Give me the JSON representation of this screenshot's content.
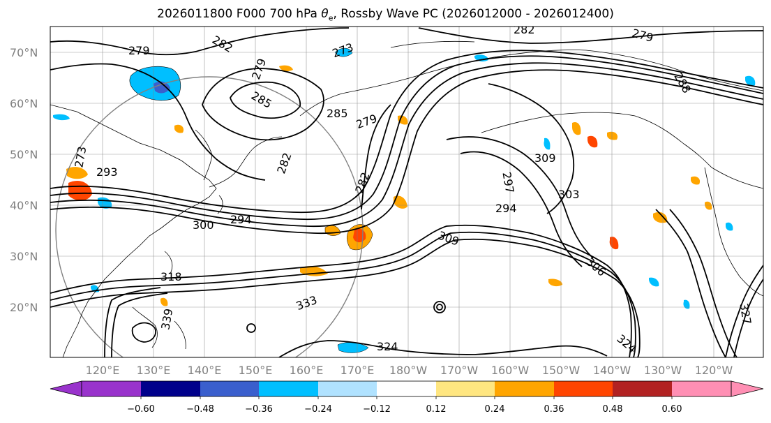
{
  "map": {
    "title_prefix": "2026011800 F000 700 hPa ",
    "title_var": "θ",
    "title_sub": "e",
    "title_suffix": ", Rossby Wave PC (2026012000 - 2026012400)",
    "lat_labels": [
      "70°N",
      "60°N",
      "50°N",
      "40°N",
      "30°N",
      "20°N"
    ],
    "lon_labels": [
      "120°E",
      "130°E",
      "140°E",
      "150°E",
      "160°E",
      "170°E",
      "180°W",
      "170°W",
      "160°W",
      "150°W",
      "140°W",
      "130°W",
      "120°W"
    ],
    "contour_labels": [
      {
        "text": "279",
        "name": "contour-label-279-a"
      },
      {
        "text": "282",
        "name": "contour-label-282-a"
      },
      {
        "text": "273",
        "name": "contour-label-273"
      },
      {
        "text": "279",
        "name": "contour-label-279-b"
      },
      {
        "text": "285",
        "name": "contour-label-285-a"
      },
      {
        "text": "285",
        "name": "contour-label-285-b"
      },
      {
        "text": "279",
        "name": "contour-label-279-c"
      },
      {
        "text": "279",
        "name": "contour-label-279-d"
      },
      {
        "text": "282",
        "name": "contour-label-282-b"
      },
      {
        "text": "288",
        "name": "contour-label-288"
      },
      {
        "text": "273",
        "name": "contour-label-273-b"
      },
      {
        "text": "293",
        "name": "contour-label-293"
      },
      {
        "text": "282",
        "name": "contour-label-282-c"
      },
      {
        "text": "282",
        "name": "contour-label-282-d"
      },
      {
        "text": "297",
        "name": "contour-label-297"
      },
      {
        "text": "309",
        "name": "contour-label-309"
      },
      {
        "text": "294",
        "name": "contour-label-294-a"
      },
      {
        "text": "303",
        "name": "contour-label-303"
      },
      {
        "text": "300",
        "name": "contour-label-300"
      },
      {
        "text": "294",
        "name": "contour-label-294-b"
      },
      {
        "text": "309",
        "name": "contour-label-309-b"
      },
      {
        "text": "318",
        "name": "contour-label-318"
      },
      {
        "text": "306",
        "name": "contour-label-306"
      },
      {
        "text": "333",
        "name": "contour-label-333"
      },
      {
        "text": "339",
        "name": "contour-label-339"
      },
      {
        "text": "327",
        "name": "contour-label-327"
      },
      {
        "text": "324",
        "name": "contour-label-324"
      },
      {
        "text": "324",
        "name": "contour-label-324-b"
      }
    ]
  },
  "colorbar": {
    "ticks": [
      "−0.60",
      "−0.48",
      "−0.36",
      "−0.24",
      "−0.12",
      "0.12",
      "0.24",
      "0.36",
      "0.48",
      "0.60"
    ],
    "colors": [
      "#9933cc",
      "#00008b",
      "#3a5fcd",
      "#00bfff",
      "#b0e2ff",
      "#ffffff",
      "#ffe680",
      "#ffa500",
      "#ff4500",
      "#b22222",
      "#ff8fb4"
    ]
  },
  "colors": {
    "contour": "#000000",
    "grid": "#808080",
    "tick_text": "#808080",
    "land_outline": "#000000"
  }
}
